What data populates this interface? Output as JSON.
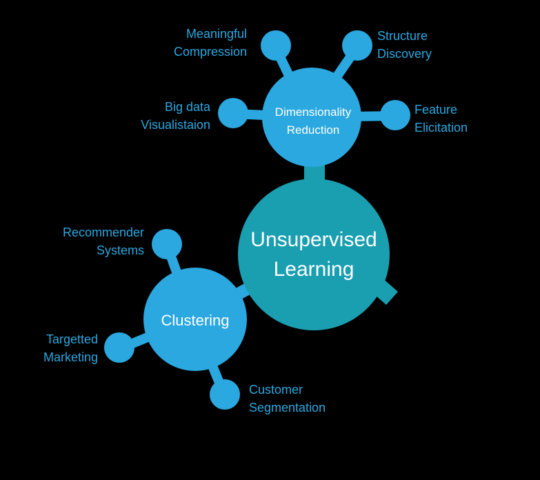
{
  "center": {
    "line1": "Unsupervised",
    "line2": "Learning"
  },
  "dimensionality": {
    "line1": "Dimensionality",
    "line2": "Reduction"
  },
  "clustering": {
    "label": "Clustering"
  },
  "dim_leaves": {
    "meaningful": {
      "line1": "Meaningful",
      "line2": "Compression"
    },
    "structure": {
      "line1": "Structure",
      "line2": "Discovery"
    },
    "bigdata": {
      "line1": "Big data",
      "line2": "Visualistaion"
    },
    "feature": {
      "line1": "Feature",
      "line2": "Elicitation"
    }
  },
  "cluster_leaves": {
    "recommender": {
      "line1": "Recommender",
      "line2": "Systems"
    },
    "targetted": {
      "line1": "Targetted",
      "line2": "Marketing"
    },
    "customer": {
      "line1": "Customer",
      "line2": "Segmentation"
    }
  },
  "colors": {
    "background": "#000000",
    "center_fill": "#1a9fb1",
    "node_fill": "#2ba8e0",
    "label_text": "#2ba8e0",
    "node_text": "#ffffff"
  }
}
